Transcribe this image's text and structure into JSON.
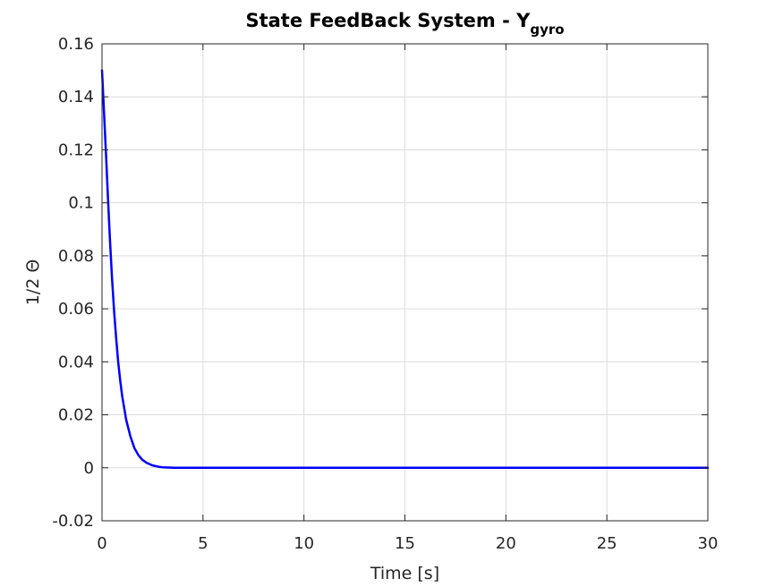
{
  "chart_data": {
    "type": "line",
    "title": "State FeedBack System - Y",
    "title_subscript": "gyro",
    "xlabel": "Time [s]",
    "ylabel": "1/2 Θ",
    "xlim": [
      0,
      30
    ],
    "ylim": [
      -0.02,
      0.16
    ],
    "xticks": [
      0,
      5,
      10,
      15,
      20,
      25,
      30
    ],
    "xtick_labels": [
      "0",
      "5",
      "10",
      "15",
      "20",
      "25",
      "30"
    ],
    "yticks": [
      -0.02,
      0,
      0.02,
      0.04,
      0.06,
      0.08,
      0.1,
      0.12,
      0.14,
      0.16
    ],
    "ytick_labels": [
      "-0.02",
      "0",
      "0.02",
      "0.04",
      "0.06",
      "0.08",
      "0.1",
      "0.12",
      "0.14",
      "0.16"
    ],
    "grid": true,
    "series": [
      {
        "color": "#0000ff",
        "x": [
          0,
          0.1,
          0.2,
          0.3,
          0.4,
          0.5,
          0.6,
          0.7,
          0.8,
          0.9,
          1.0,
          1.2,
          1.4,
          1.6,
          1.8,
          2.0,
          2.2,
          2.5,
          2.8,
          3.0,
          3.3,
          3.6,
          4.0,
          5,
          10,
          15,
          20,
          25,
          30
        ],
        "y": [
          0.15,
          0.134,
          0.118,
          0.101,
          0.085,
          0.071,
          0.059,
          0.049,
          0.04,
          0.033,
          0.027,
          0.018,
          0.012,
          0.0075,
          0.0048,
          0.003,
          0.0019,
          0.0009,
          0.0004,
          0.0002,
          0.0001,
          3e-05,
          0.0,
          0.0,
          0.0,
          0.0,
          0.0,
          0.0,
          0.0
        ]
      }
    ]
  }
}
